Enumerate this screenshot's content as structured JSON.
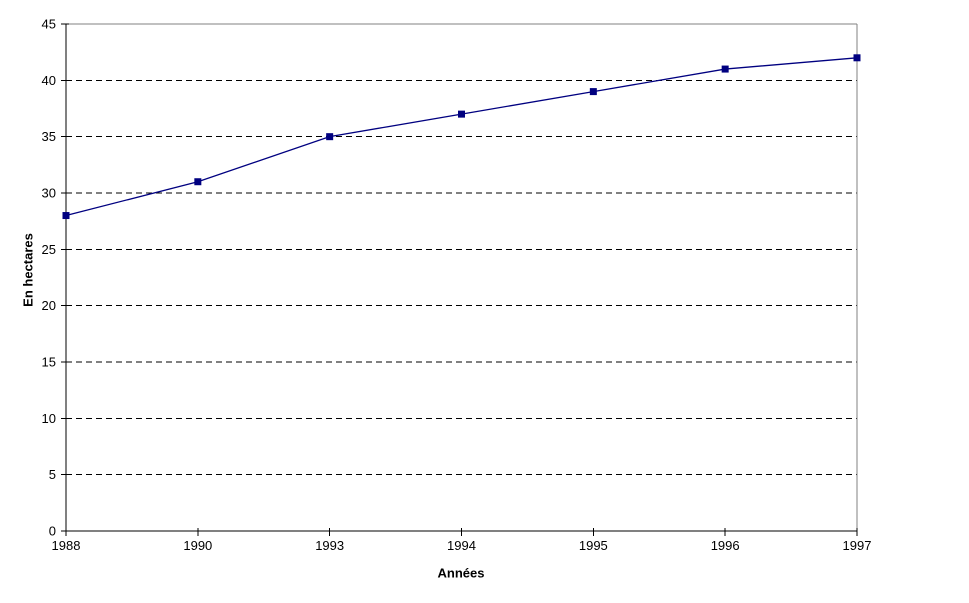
{
  "chart_data": {
    "type": "line",
    "categories": [
      "1988",
      "1990",
      "1993",
      "1994",
      "1995",
      "1996",
      "1997"
    ],
    "values": [
      28,
      31,
      35,
      37,
      39,
      41,
      42
    ],
    "series": [
      {
        "name": "En hectares",
        "values": [
          28,
          31,
          35,
          37,
          39,
          41,
          42
        ]
      }
    ],
    "title": "",
    "xlabel": "Années",
    "ylabel": "En hectares",
    "ylim": [
      0,
      45
    ],
    "ytick_step": 5,
    "yticks": [
      0,
      5,
      10,
      15,
      20,
      25,
      30,
      35,
      40,
      45
    ],
    "grid": "horizontal-dashed",
    "legend_position": "none",
    "marker": "square"
  },
  "colors": {
    "series_line": "#000080",
    "series_marker": "#000080",
    "gridline": "#000000",
    "axis": "#000000",
    "plot_border": "#808080",
    "background": "#ffffff",
    "text": "#000000"
  }
}
